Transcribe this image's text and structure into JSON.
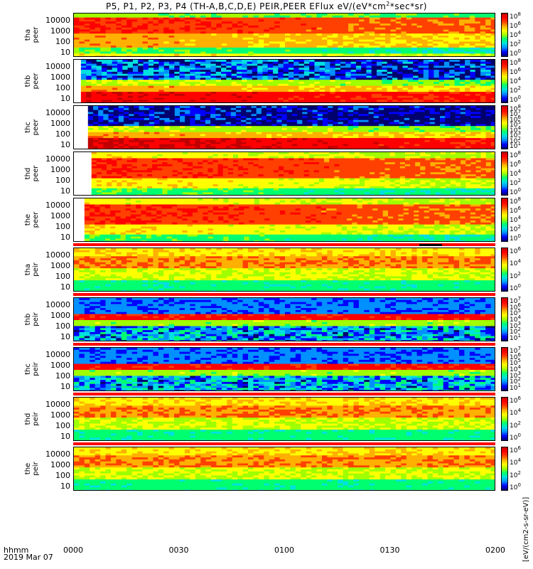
{
  "chart_data": {
    "type": "heatmap",
    "title_prefix": "P5, P1, P2, P3, P4 (TH-A,B,C,D,E) PEIR,PEER EFlux eV/(eV*cm",
    "title_sup": "2",
    "title_suffix": "*sec*sr)",
    "x_label": "hhmm",
    "date": "2019 Mar 07",
    "x_ticks": [
      "0000",
      "0030",
      "0100",
      "0130",
      "0200"
    ],
    "colorbar_units": "[eV/(cm2-s-sr-eV)]",
    "y_scale": "log",
    "y_ticks": [
      "10",
      "100",
      "1000",
      "10000"
    ],
    "panels": [
      {
        "probe": "tha",
        "species": "peer",
        "colorbar_ticks": [
          "8",
          "6",
          "4",
          "2",
          "0"
        ],
        "data_gap_start_hhmm": null
      },
      {
        "probe": "thb",
        "species": "peer",
        "colorbar_ticks": [
          "8",
          "6",
          "4",
          "2",
          "0"
        ],
        "data_gap_start_hhmm": "0002"
      },
      {
        "probe": "thc",
        "species": "peer",
        "colorbar_ticks": [
          "8",
          "7",
          "6",
          "5",
          "4",
          "3",
          "2",
          "1"
        ],
        "data_gap_start_hhmm": "0004"
      },
      {
        "probe": "thd",
        "species": "peer",
        "colorbar_ticks": [
          "8",
          "6",
          "4",
          "2",
          "0"
        ],
        "data_gap_start_hhmm": "0005"
      },
      {
        "probe": "the",
        "species": "peer",
        "colorbar_ticks": [
          "8",
          "6",
          "4",
          "2",
          "0"
        ],
        "data_gap_start_hhmm": "0003"
      },
      {
        "probe": "tha",
        "species": "peir",
        "colorbar_ticks": [
          "6",
          "4",
          "2",
          "0"
        ],
        "data_gap_start_hhmm": null
      },
      {
        "probe": "thb",
        "species": "peir",
        "colorbar_ticks": [
          "7",
          "6",
          "5",
          "4",
          "3",
          "2",
          "1"
        ],
        "data_gap_start_hhmm": null
      },
      {
        "probe": "thc",
        "species": "peir",
        "colorbar_ticks": [
          "7",
          "6",
          "5",
          "4",
          "3",
          "2",
          "1"
        ],
        "data_gap_start_hhmm": null
      },
      {
        "probe": "thd",
        "species": "peir",
        "colorbar_ticks": [
          "6",
          "4",
          "2",
          "0"
        ],
        "data_gap_start_hhmm": null
      },
      {
        "probe": "the",
        "species": "peir",
        "colorbar_ticks": [
          "6",
          "4",
          "2",
          "0"
        ],
        "data_gap_start_hhmm": null
      }
    ],
    "colorscale": [
      "#00006e",
      "#0000ff",
      "#0090ff",
      "#00e0e0",
      "#00ff70",
      "#a0ff00",
      "#ffff00",
      "#ffb000",
      "#ff4000",
      "#ff0000",
      "#c00000"
    ]
  }
}
